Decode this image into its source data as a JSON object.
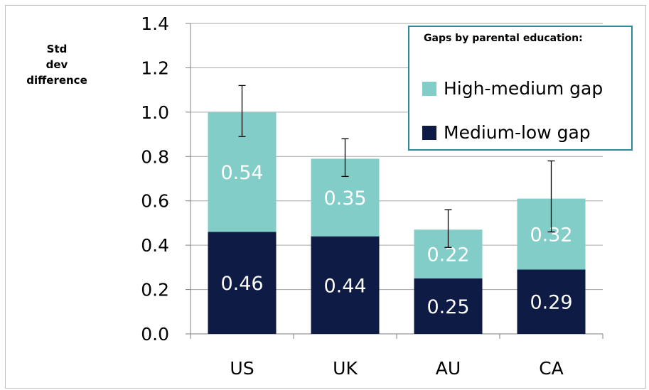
{
  "chart_data": {
    "type": "bar",
    "stacked": true,
    "categories": [
      "US",
      "UK",
      "AU",
      "CA"
    ],
    "series": [
      {
        "name": "Medium-low gap",
        "values": [
          0.46,
          0.44,
          0.25,
          0.29
        ],
        "labels": [
          "0.46",
          "0.44",
          "0.25",
          "0.29"
        ],
        "color": "#0d1b45"
      },
      {
        "name": "High-medium gap",
        "values": [
          0.54,
          0.35,
          0.22,
          0.32
        ],
        "labels": [
          "0.54",
          "0.35",
          "0.22",
          "0.32"
        ],
        "color": "#82cdc7"
      }
    ],
    "error_bars": [
      {
        "low": 0.89,
        "high": 1.12
      },
      {
        "low": 0.71,
        "high": 0.88
      },
      {
        "low": 0.39,
        "high": 0.56
      },
      {
        "low": 0.46,
        "high": 0.78
      }
    ],
    "ylim": [
      0,
      1.4
    ],
    "yticks": [
      "0.0",
      "0.2",
      "0.4",
      "0.6",
      "0.8",
      "1.0",
      "1.2",
      "1.4"
    ],
    "ylabel": [
      "Std",
      "dev",
      "difference"
    ],
    "legend_title": "Gaps by parental education:",
    "legend_position": "top-right",
    "grid": true
  }
}
